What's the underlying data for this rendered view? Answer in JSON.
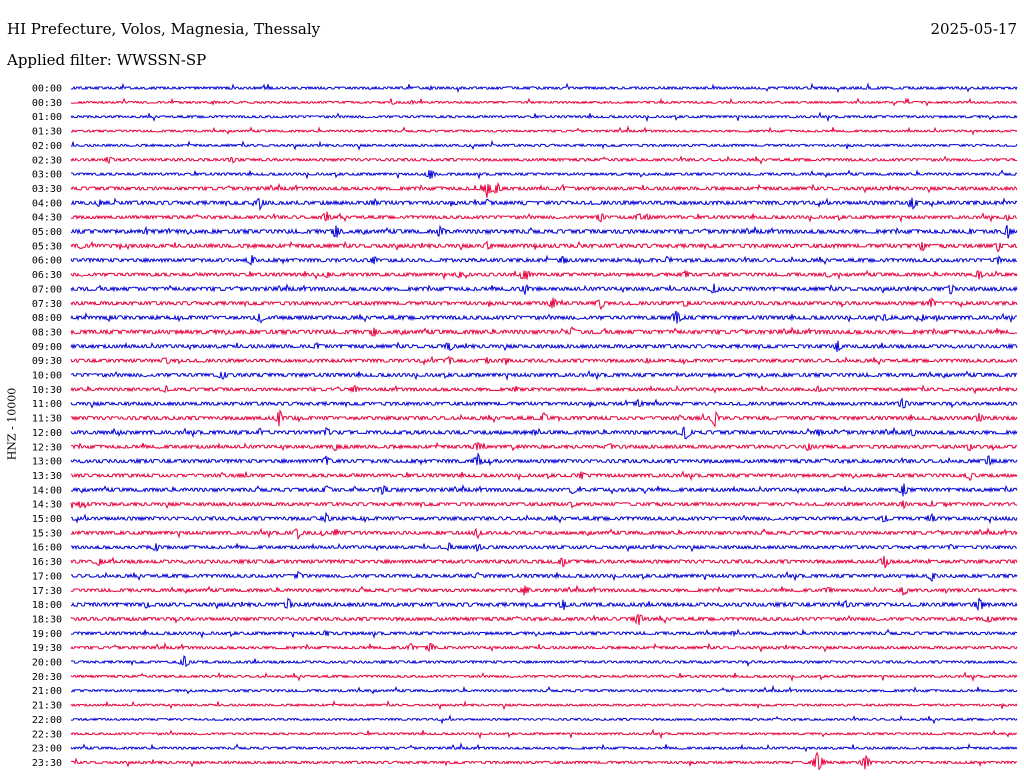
{
  "header": {
    "title": "HI Prefecture, Volos, Magnesia, Thessaly",
    "date": "2025-05-17",
    "filter": "Applied filter: WWSSN-SP"
  },
  "chart_data": {
    "type": "line",
    "ylabel": "HNZ - 10000",
    "colors": [
      "#0000d8",
      "#e8003c"
    ],
    "tick_labels": [
      "00:00",
      "00:30",
      "01:00",
      "01:30",
      "02:00",
      "02:30",
      "03:00",
      "03:30",
      "04:00",
      "04:30",
      "05:00",
      "05:30",
      "06:00",
      "06:30",
      "07:00",
      "07:30",
      "08:00",
      "08:30",
      "09:00",
      "09:30",
      "10:00",
      "10:30",
      "11:00",
      "11:30",
      "12:00",
      "12:30",
      "13:00",
      "13:30",
      "14:00",
      "14:30",
      "15:00",
      "15:30",
      "16:00",
      "16:30",
      "17:00",
      "17:30",
      "18:00",
      "18:30",
      "19:00",
      "19:30",
      "20:00",
      "20:30",
      "21:00",
      "21:30",
      "22:00",
      "22:30",
      "23:00",
      "23:30"
    ],
    "noise_levels": [
      1.2,
      1.0,
      1.1,
      1.0,
      1.1,
      1.3,
      1.2,
      1.6,
      1.8,
      1.5,
      1.9,
      1.8,
      1.7,
      1.6,
      1.8,
      1.7,
      1.8,
      1.9,
      1.7,
      1.6,
      1.7,
      1.5,
      1.6,
      1.7,
      1.8,
      1.6,
      1.7,
      1.6,
      1.7,
      1.6,
      1.7,
      1.6,
      1.5,
      1.7,
      1.6,
      1.5,
      1.8,
      1.6,
      1.4,
      1.3,
      1.2,
      1.1,
      1.1,
      1.0,
      1.0,
      1.0,
      1.1,
      1.2
    ],
    "events": [
      [
        [
          0.38,
          2.5
        ]
      ],
      [
        [
          0.34,
          2.5
        ],
        [
          0.36,
          2.5
        ],
        [
          0.15,
          2
        ]
      ],
      [],
      [],
      [
        [
          0.42,
          2
        ]
      ],
      [
        [
          0.04,
          5
        ],
        [
          0.17,
          4
        ]
      ],
      [
        [
          0.38,
          6
        ]
      ],
      [
        [
          0.44,
          10
        ],
        [
          0.45,
          7
        ],
        [
          0.52,
          3
        ]
      ],
      [
        [
          0.03,
          4
        ],
        [
          0.2,
          7
        ],
        [
          0.32,
          5
        ],
        [
          0.44,
          4
        ],
        [
          0.48,
          3
        ],
        [
          0.89,
          10
        ]
      ],
      [
        [
          0.27,
          7
        ],
        [
          0.56,
          7
        ],
        [
          0.6,
          5
        ],
        [
          0.61,
          4
        ],
        [
          0.99,
          4
        ]
      ],
      [
        [
          0.08,
          4
        ],
        [
          0.28,
          8
        ],
        [
          0.39,
          7
        ],
        [
          0.95,
          4
        ],
        [
          0.99,
          8
        ]
      ],
      [
        [
          0.01,
          4
        ],
        [
          0.44,
          5
        ],
        [
          0.9,
          6
        ],
        [
          0.98,
          6
        ]
      ],
      [
        [
          0.19,
          7
        ],
        [
          0.32,
          5
        ],
        [
          0.52,
          6
        ],
        [
          0.63,
          4
        ],
        [
          0.98,
          5
        ]
      ],
      [
        [
          0.27,
          4
        ],
        [
          0.41,
          5
        ],
        [
          0.48,
          8
        ],
        [
          0.65,
          5
        ],
        [
          0.8,
          4
        ],
        [
          0.96,
          6
        ]
      ],
      [
        [
          0.48,
          6
        ],
        [
          0.68,
          8
        ],
        [
          0.93,
          6
        ]
      ],
      [
        [
          0.51,
          8
        ],
        [
          0.56,
          7
        ],
        [
          0.65,
          5
        ],
        [
          0.91,
          6
        ]
      ],
      [
        [
          0.04,
          4
        ],
        [
          0.2,
          7
        ],
        [
          0.64,
          9
        ],
        [
          0.86,
          5
        ],
        [
          0.9,
          5
        ]
      ],
      [
        [
          0.32,
          6
        ],
        [
          0.53,
          6
        ]
      ],
      [
        [
          0.26,
          5
        ],
        [
          0.4,
          6
        ],
        [
          0.81,
          7
        ]
      ],
      [
        [
          0.1,
          6
        ],
        [
          0.4,
          5
        ],
        [
          0.44,
          4
        ],
        [
          0.46,
          5
        ],
        [
          0.61,
          4
        ]
      ],
      [
        [
          0.16,
          6
        ]
      ],
      [
        [
          0.1,
          4
        ],
        [
          0.3,
          5
        ],
        [
          0.47,
          4
        ],
        [
          0.79,
          4
        ]
      ],
      [
        [
          0.6,
          5
        ],
        [
          0.88,
          9
        ]
      ],
      [
        [
          0.22,
          9
        ],
        [
          0.5,
          6
        ],
        [
          0.68,
          10
        ],
        [
          0.96,
          6
        ]
      ],
      [
        [
          0.2,
          5
        ],
        [
          0.27,
          6
        ],
        [
          0.49,
          4
        ],
        [
          0.65,
          9
        ],
        [
          0.79,
          5
        ],
        [
          0.89,
          6
        ]
      ],
      [
        [
          0.28,
          5
        ],
        [
          0.43,
          6
        ],
        [
          0.57,
          5
        ],
        [
          0.78,
          6
        ],
        [
          0.95,
          5
        ]
      ],
      [
        [
          0.27,
          6
        ],
        [
          0.43,
          8
        ],
        [
          0.97,
          6
        ]
      ],
      [
        [
          0.54,
          5
        ],
        [
          0.95,
          6
        ]
      ],
      [
        [
          0.27,
          7
        ],
        [
          0.33,
          7
        ],
        [
          0.53,
          5
        ],
        [
          0.88,
          8
        ]
      ],
      [
        [
          0.01,
          4
        ],
        [
          0.53,
          4
        ],
        [
          0.88,
          5
        ],
        [
          0.91,
          4
        ]
      ],
      [
        [
          0.27,
          6
        ],
        [
          0.86,
          5
        ],
        [
          0.91,
          5
        ]
      ],
      [
        [
          0.24,
          7
        ],
        [
          0.28,
          5
        ],
        [
          0.43,
          6
        ]
      ],
      [
        [
          0.09,
          5
        ],
        [
          0.4,
          5
        ],
        [
          0.43,
          5
        ],
        [
          0.93,
          4
        ]
      ],
      [
        [
          0.03,
          5
        ],
        [
          0.52,
          6
        ],
        [
          0.86,
          7
        ]
      ],
      [
        [
          0.24,
          6
        ],
        [
          0.43,
          4
        ],
        [
          0.91,
          6
        ]
      ],
      [
        [
          0.48,
          7
        ],
        [
          0.8,
          5
        ],
        [
          0.88,
          6
        ]
      ],
      [
        [
          0.08,
          5
        ],
        [
          0.23,
          7
        ],
        [
          0.52,
          7
        ],
        [
          0.82,
          5
        ],
        [
          0.96,
          9
        ]
      ],
      [
        [
          0.6,
          8
        ],
        [
          0.97,
          6
        ]
      ],
      [
        [
          0.27,
          5
        ],
        [
          0.7,
          3
        ]
      ],
      [
        [
          0.36,
          5
        ],
        [
          0.38,
          6
        ]
      ],
      [
        [
          0.12,
          7
        ]
      ],
      [],
      [],
      [],
      [],
      [],
      [],
      [
        [
          0.79,
          14
        ],
        [
          0.84,
          9
        ]
      ]
    ]
  }
}
